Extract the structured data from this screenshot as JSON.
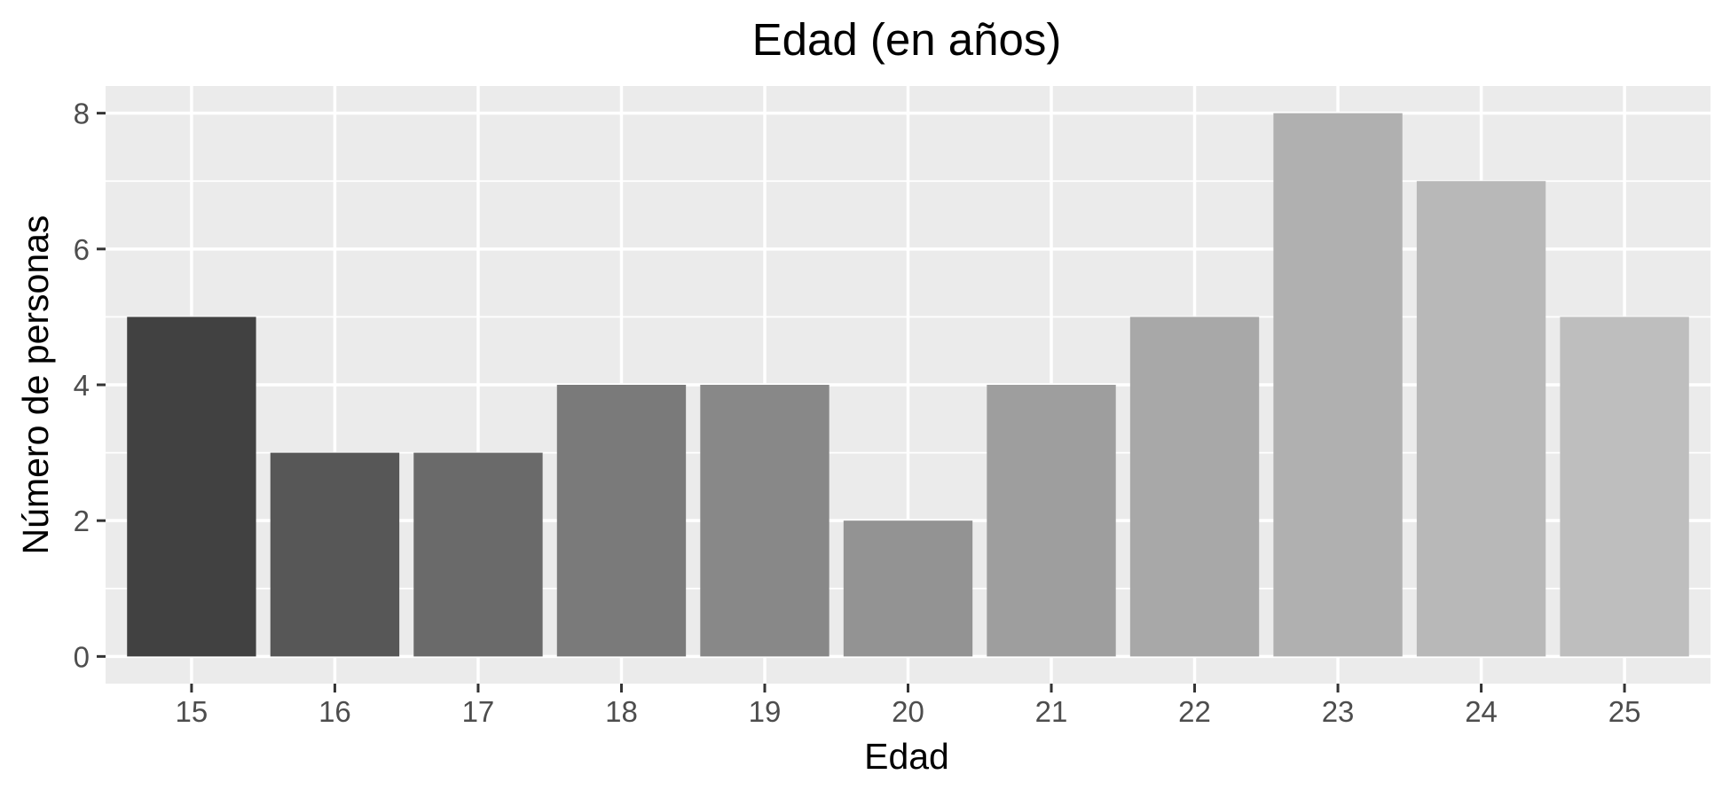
{
  "chart_data": {
    "type": "bar",
    "title": "Edad (en años)",
    "xlabel": "Edad",
    "ylabel": "Número de personas",
    "categories": [
      "15",
      "16",
      "17",
      "18",
      "19",
      "20",
      "21",
      "22",
      "23",
      "24",
      "25"
    ],
    "values": [
      5,
      3,
      3,
      4,
      4,
      2,
      4,
      5,
      8,
      7,
      5
    ],
    "colors": [
      "#414141",
      "#575757",
      "#6a6a6a",
      "#7a7a7a",
      "#888888",
      "#939393",
      "#9e9e9e",
      "#a8a8a8",
      "#b0b0b0",
      "#b8b8b8",
      "#bebebe"
    ],
    "y_ticks": [
      "0",
      "2",
      "4",
      "6",
      "8"
    ],
    "ylim": [
      -0.4,
      8.4
    ],
    "grid": true,
    "legend": "none",
    "panel_background": "#ebebeb"
  }
}
